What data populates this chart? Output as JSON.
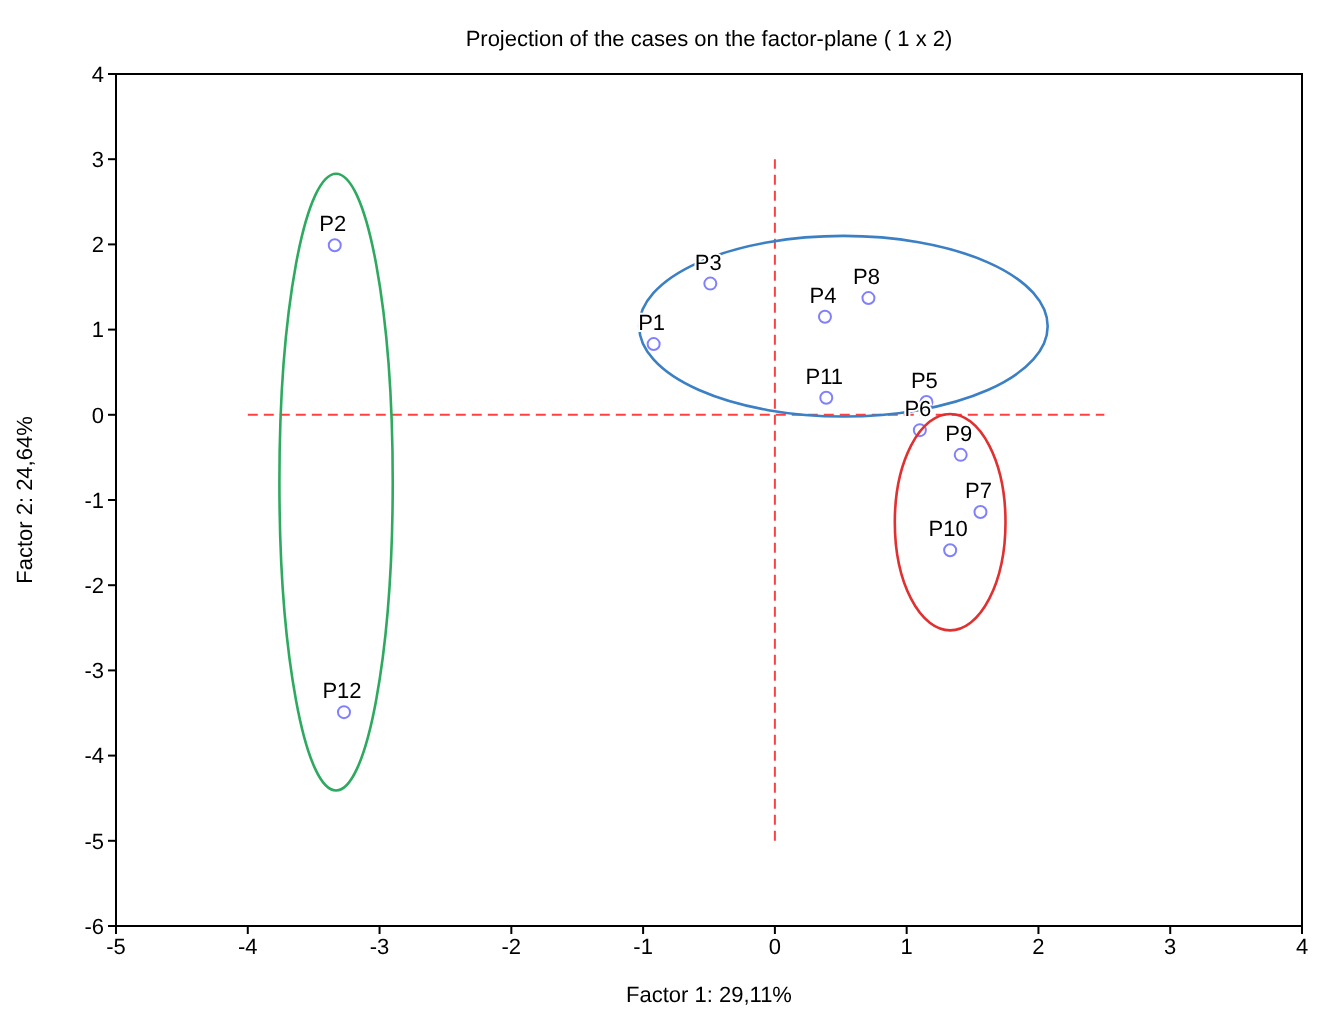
{
  "chart_data": {
    "type": "scatter",
    "title": "Projection of the cases on the factor-plane (  1 x   2)",
    "xlabel": "Factor 1: 29,11%",
    "ylabel": "Factor 2: 24,64%",
    "x": [
      -0.92,
      -3.34,
      -0.49,
      0.38,
      1.15,
      1.1,
      1.56,
      0.71,
      1.41,
      1.33,
      0.39,
      -3.27
    ],
    "series": [
      {
        "color": "#8080ff",
        "values": [
          0.83,
          1.99,
          1.54,
          1.15,
          0.15,
          -0.18,
          -1.14,
          1.37,
          -0.47,
          -1.59,
          0.2,
          -3.49
        ]
      }
    ],
    "annotations": [
      {
        "text": "P1",
        "x": -0.92,
        "y": 0.83
      },
      {
        "text": "P2",
        "x": -3.34,
        "y": 1.99
      },
      {
        "text": "P3",
        "x": -0.49,
        "y": 1.54
      },
      {
        "text": "P4",
        "x": 0.38,
        "y": 1.15
      },
      {
        "text": "P5",
        "x": 1.15,
        "y": 0.15
      },
      {
        "text": "P6",
        "x": 1.1,
        "y": -0.18
      },
      {
        "text": "P7",
        "x": 1.56,
        "y": -1.14
      },
      {
        "text": "P8",
        "x": 0.71,
        "y": 1.37
      },
      {
        "text": "P9",
        "x": 1.41,
        "y": -0.47
      },
      {
        "text": "P10",
        "x": 1.33,
        "y": -1.59
      },
      {
        "text": "P11",
        "x": 0.39,
        "y": 0.2
      },
      {
        "text": "P12",
        "x": -3.27,
        "y": -3.49
      }
    ],
    "ref_lines": [
      {
        "axis": "y",
        "value": 0,
        "color": "#ff4040",
        "line_style": "dashed"
      },
      {
        "axis": "x",
        "value": 0,
        "color": "#ff4040",
        "line_style": "dashed"
      }
    ],
    "xlim": [
      -5,
      4
    ],
    "xticks": [
      -5,
      -4,
      -3,
      -2,
      -1,
      0,
      1,
      2,
      3,
      4
    ],
    "ylim": [
      -6,
      4
    ],
    "yticks": [
      -6,
      -5,
      -4,
      -3,
      -2,
      -1,
      0,
      1,
      2,
      3,
      4
    ],
    "grid": false,
    "legend": false,
    "marker": "circle"
  }
}
